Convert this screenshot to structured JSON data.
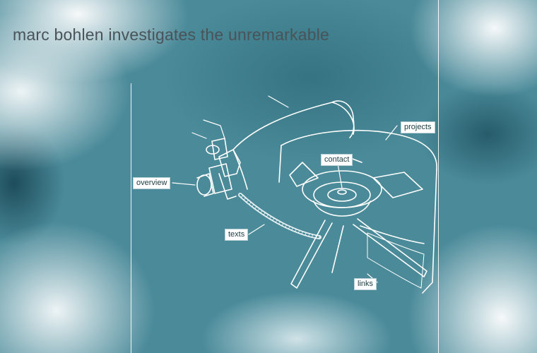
{
  "page": {
    "title": "marc bohlen investigates the unremarkable"
  },
  "nav": {
    "projects": "projects",
    "contact": "contact",
    "overview": "overview",
    "texts": "texts",
    "links": "links"
  },
  "colors": {
    "background": "#4a8a99",
    "title_text": "#4a5358",
    "label_background": "#ffffff",
    "line_art": "#ffffff"
  },
  "illustration": {
    "subject": "camping stove line drawing"
  }
}
